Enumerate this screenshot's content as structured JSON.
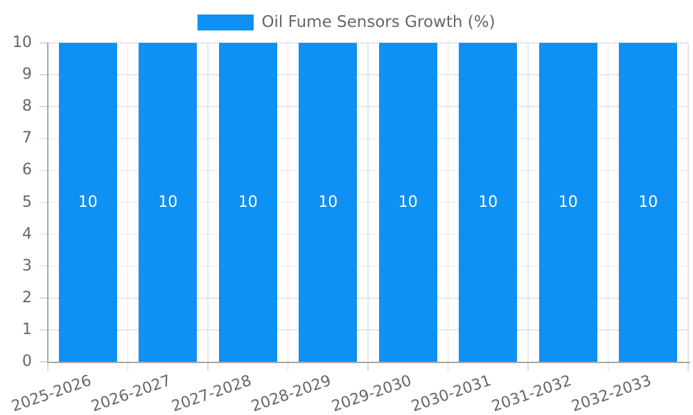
{
  "chart_data": {
    "type": "bar",
    "title": "",
    "legend_label": "Oil Fume Sensors Growth (%)",
    "legend_position": "top-center",
    "categories": [
      "2025-2026",
      "2026-2027",
      "2027-2028",
      "2028-2029",
      "2029-2030",
      "2030-2031",
      "2031-2032",
      "2032-2033"
    ],
    "series": [
      {
        "name": "Oil Fume Sensors Growth (%)",
        "values": [
          10,
          10,
          10,
          10,
          10,
          10,
          10,
          10
        ]
      }
    ],
    "bar_value_labels": [
      "10",
      "10",
      "10",
      "10",
      "10",
      "10",
      "10",
      "10"
    ],
    "xlabel": "",
    "ylabel": "",
    "ylim": [
      0,
      10
    ],
    "ytick_step": 1,
    "ytick_labels": [
      "0",
      "1",
      "2",
      "3",
      "4",
      "5",
      "6",
      "7",
      "8",
      "9",
      "10"
    ],
    "grid": true,
    "x_label_rotation_deg": -19,
    "colors": {
      "bar": "#0E90F4",
      "bar_label": "#ffffff",
      "axis_text": "#666666",
      "gridline": "#e7e7e7",
      "tick": "#d9d9d9",
      "axis_line": "#a6a6a6",
      "background": "#ffffff"
    }
  }
}
